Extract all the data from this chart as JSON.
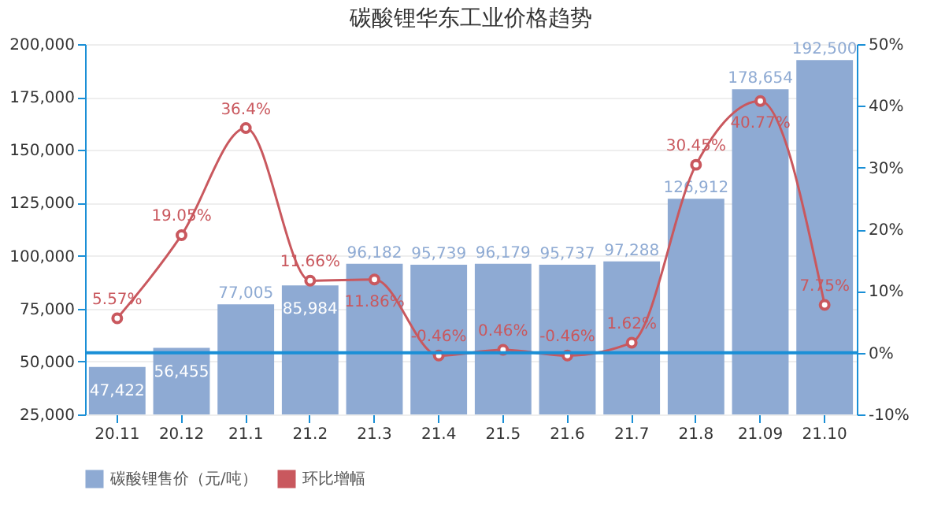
{
  "chart_data": {
    "type": "bar",
    "title": "碳酸锂华东工业价格趋势",
    "categories": [
      "20.11",
      "20.12",
      "21.1",
      "21.2",
      "21.3",
      "21.4",
      "21.5",
      "21.6",
      "21.7",
      "21.8",
      "21.09",
      "21.10"
    ],
    "series": [
      {
        "name": "碳酸锂售价（元/吨）",
        "color": "#8eaad3",
        "values": [
          47422,
          56455,
          77005,
          85984,
          96182,
          95739,
          96179,
          95737,
          97288,
          126912,
          178654,
          192500
        ],
        "value_labels": [
          "47,422",
          "56,455",
          "77,005",
          "85,984",
          "96,182",
          "95,739",
          "96,179",
          "95,737",
          "97,288",
          "126,912",
          "178,654",
          "192,500"
        ]
      },
      {
        "name": "环比增幅",
        "type": "line",
        "axis": "y2",
        "color": "#c9585e",
        "marker": "circle",
        "values": [
          5.57,
          19.05,
          36.4,
          11.66,
          11.86,
          -0.46,
          0.46,
          -0.46,
          1.62,
          30.45,
          40.77,
          7.75
        ],
        "value_labels": [
          "5.57%",
          "19.05%",
          "36.4%",
          "11.66%",
          "11.86%",
          "-0.46%",
          "0.46%",
          "-0.46%",
          "1.62%",
          "30.45%",
          "40.77%",
          "7.75%"
        ]
      }
    ],
    "ylim": [
      25000,
      200000
    ],
    "yticks": [
      {
        "value": 25000,
        "label": "25,000"
      },
      {
        "value": 50000,
        "label": "50,000"
      },
      {
        "value": 75000,
        "label": "75,000"
      },
      {
        "value": 100000,
        "label": "100,000"
      },
      {
        "value": 125000,
        "label": "125,000"
      },
      {
        "value": 150000,
        "label": "150,000"
      },
      {
        "value": 175000,
        "label": "175,000"
      },
      {
        "value": 200000,
        "label": "200,000"
      }
    ],
    "y2lim": [
      -10,
      50
    ],
    "y2ticks": [
      {
        "value": -10,
        "label": "-10%"
      },
      {
        "value": 0,
        "label": "0%"
      },
      {
        "value": 10,
        "label": "10%"
      },
      {
        "value": 20,
        "label": "20%"
      },
      {
        "value": 30,
        "label": "30%"
      },
      {
        "value": 40,
        "label": "40%"
      },
      {
        "value": 50,
        "label": "50%"
      }
    ],
    "ref_lines": [
      {
        "axis": "y2",
        "value": 0,
        "color": "#1a8fd6"
      }
    ],
    "grid": "y",
    "legend": "bottom"
  }
}
